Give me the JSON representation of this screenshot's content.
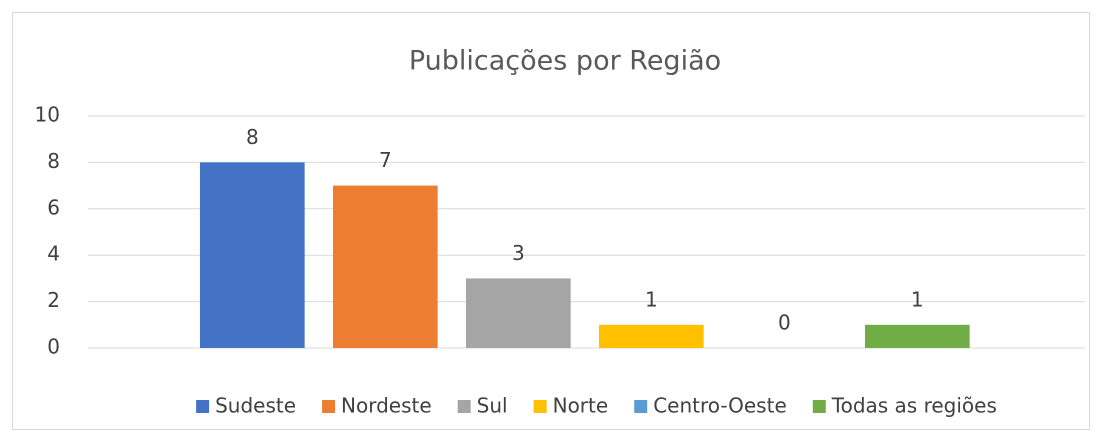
{
  "chart_data": {
    "type": "bar",
    "title": "Publicações por Região",
    "categories": [
      null
    ],
    "series": [
      {
        "name": "Sudeste",
        "color": "#4472c4",
        "values": [
          8
        ]
      },
      {
        "name": "Nordeste",
        "color": "#ed7d31",
        "values": [
          7
        ]
      },
      {
        "name": "Sul",
        "color": "#a5a5a5",
        "values": [
          3
        ]
      },
      {
        "name": "Norte",
        "color": "#ffc000",
        "values": [
          1
        ]
      },
      {
        "name": "Centro-Oeste",
        "color": "#5b9bd5",
        "values": [
          0
        ]
      },
      {
        "name": "Todas as regiões",
        "color": "#70ad47",
        "values": [
          1
        ]
      }
    ],
    "ylim": [
      0,
      10
    ],
    "yticks": [
      0,
      2,
      4,
      6,
      8,
      10
    ],
    "grid": true,
    "legend": "bottom"
  }
}
